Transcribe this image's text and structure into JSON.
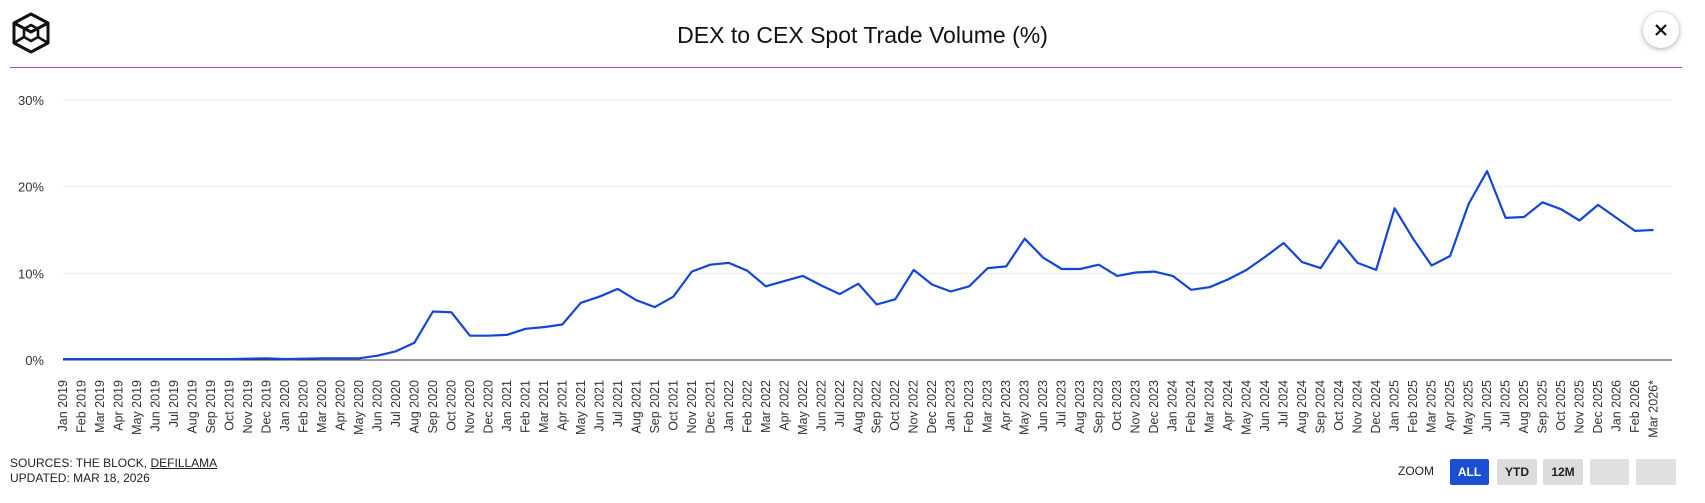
{
  "header": {
    "title": "DEX to CEX Spot Trade Volume (%)"
  },
  "icons": {
    "logo": "the-block-cube-logo",
    "close": "close-icon"
  },
  "colors": {
    "line": "#1346d6",
    "divider": "#a14bf2",
    "active_button": "#1a4fd1"
  },
  "footer": {
    "sources_prefix": "SOURCES: THE BLOCK, ",
    "sources_link": "DEFILLAMA",
    "updated": "UPDATED: MAR 18, 2026"
  },
  "zoom": {
    "label": "ZOOM",
    "buttons": [
      {
        "label": "ALL",
        "active": true
      },
      {
        "label": "YTD",
        "active": false
      },
      {
        "label": "12M",
        "active": false
      },
      {
        "label": "",
        "active": false
      },
      {
        "label": "",
        "active": false
      }
    ]
  },
  "chart_data": {
    "type": "line",
    "title": "DEX to CEX Spot Trade Volume (%)",
    "ylim": [
      0,
      30
    ],
    "yticks": [
      "0%",
      "10%",
      "20%",
      "30%"
    ],
    "grid": true,
    "x": [
      "Jan 2019",
      "Feb 2019",
      "Mar 2019",
      "Apr 2019",
      "May 2019",
      "Jun 2019",
      "Jul 2019",
      "Aug 2019",
      "Sep 2019",
      "Oct 2019",
      "Nov 2019",
      "Dec 2019",
      "Jan 2020",
      "Feb 2020",
      "Mar 2020",
      "Apr 2020",
      "May 2020",
      "Jun 2020",
      "Jul 2020",
      "Aug 2020",
      "Sep 2020",
      "Oct 2020",
      "Nov 2020",
      "Dec 2020",
      "Jan 2021",
      "Feb 2021",
      "Mar 2021",
      "Apr 2021",
      "May 2021",
      "Jun 2021",
      "Jul 2021",
      "Aug 2021",
      "Sep 2021",
      "Oct 2021",
      "Nov 2021",
      "Dec 2021",
      "Jan 2022",
      "Feb 2022",
      "Mar 2022",
      "Apr 2022",
      "May 2022",
      "Jun 2022",
      "Jul 2022",
      "Aug 2022",
      "Sep 2022",
      "Oct 2022",
      "Nov 2022",
      "Dec 2022",
      "Jan 2023",
      "Feb 2023",
      "Mar 2023",
      "Apr 2023",
      "May 2023",
      "Jun 2023",
      "Jul 2023",
      "Aug 2023",
      "Sep 2023",
      "Oct 2023",
      "Nov 2023",
      "Dec 2023",
      "Jan 2024",
      "Feb 2024",
      "Mar 2024",
      "Apr 2024",
      "May 2024",
      "Jun 2024",
      "Jul 2024",
      "Aug 2024",
      "Sep 2024",
      "Oct 2024",
      "Nov 2024",
      "Dec 2024",
      "Jan 2025",
      "Feb 2025",
      "Mar 2025",
      "Apr 2025",
      "May 2025",
      "Jun 2025",
      "Jul 2025",
      "Aug 2025",
      "Sep 2025",
      "Oct 2025",
      "Nov 2025",
      "Dec 2025",
      "Jan 2026",
      "Feb 2026",
      "Mar 2026*"
    ],
    "series": [
      {
        "values": [
          0.1,
          0.1,
          0.1,
          0.1,
          0.1,
          0.1,
          0.1,
          0.1,
          0.1,
          0.1,
          0.15,
          0.2,
          0.1,
          0.15,
          0.2,
          0.2,
          0.2,
          0.5,
          1.0,
          2.0,
          5.6,
          5.5,
          2.8,
          2.8,
          2.9,
          3.6,
          3.8,
          4.1,
          6.6,
          7.3,
          8.2,
          6.9,
          6.1,
          7.3,
          10.2,
          11.0,
          11.2,
          10.3,
          8.5,
          9.1,
          9.7,
          8.6,
          7.6,
          8.8,
          6.4,
          7.0,
          10.4,
          8.7,
          7.9,
          8.5,
          10.6,
          10.8,
          14.0,
          11.8,
          10.5,
          10.5,
          11.0,
          9.7,
          10.1,
          10.2,
          9.7,
          8.1,
          8.4,
          9.3,
          10.4,
          11.9,
          13.5,
          11.3,
          10.6,
          13.8,
          11.2,
          10.4,
          17.5,
          14.0,
          10.9,
          12.0,
          18.0,
          21.8,
          16.4,
          16.5,
          18.2,
          17.4,
          16.1,
          17.9,
          16.4,
          14.9,
          15.0
        ]
      }
    ]
  }
}
